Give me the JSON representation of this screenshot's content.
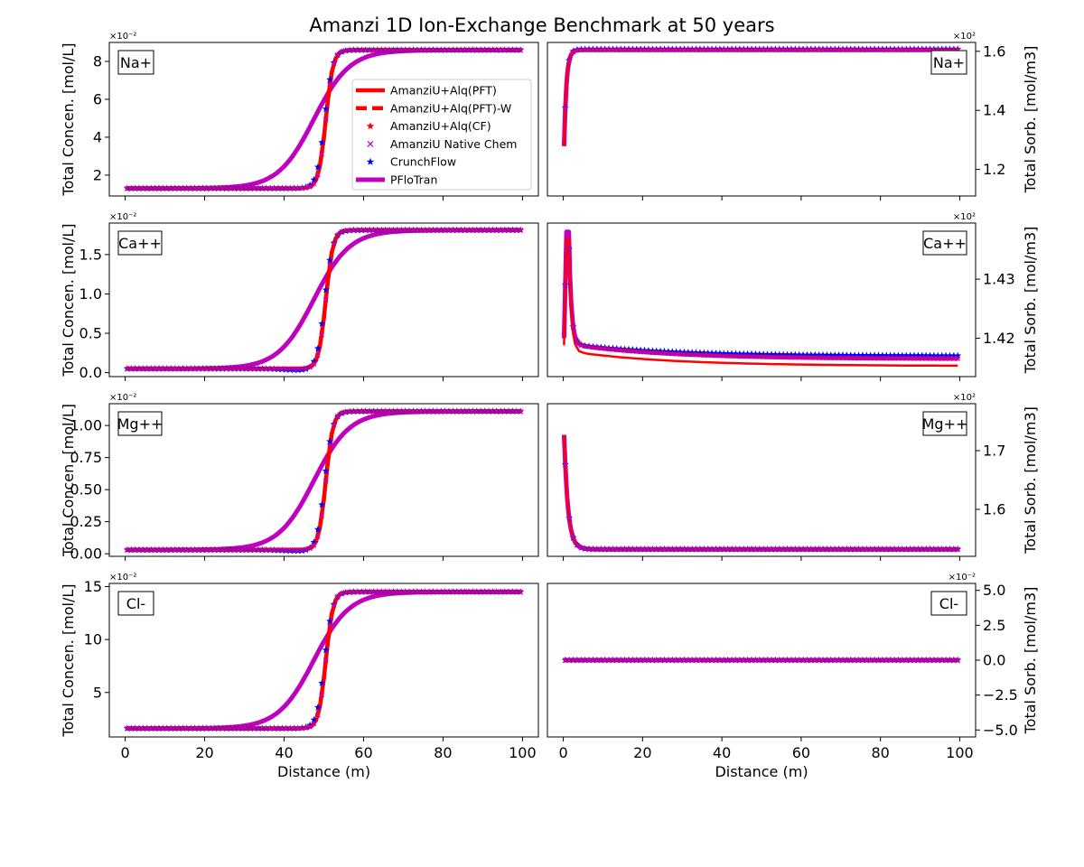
{
  "chart_data": {
    "type": "line",
    "title": "Amanzi 1D Ion-Exchange Benchmark at 50 years",
    "legend": {
      "placement": "upper-right of first panel",
      "entries": [
        {
          "label": "AmanziU+Alq(PFT)",
          "color": "#ff0000",
          "style": "solid"
        },
        {
          "label": "AmanziU+Alq(PFT)-W",
          "color": "#ff0000",
          "style": "dashed"
        },
        {
          "label": "AmanziU+Alq(CF)",
          "color": "#ff0000",
          "style": "star"
        },
        {
          "label": "AmanziU Native Chem",
          "color": "#bf00bf",
          "style": "x"
        },
        {
          "label": "CrunchFlow",
          "color": "#0000ff",
          "style": "star"
        },
        {
          "label": "PFloTran",
          "color": "#bf00bf",
          "style": "thick"
        }
      ]
    },
    "left_ylabel": "Total Concen. [mol/L]",
    "right_ylabel": "Total Sorb. [mol/m3]",
    "xlabel": "Distance (m)",
    "xlim": [
      -4,
      104
    ],
    "xticks": [
      "0",
      "20",
      "40",
      "60",
      "80",
      "100"
    ],
    "panels": [
      {
        "species": "Na+",
        "left": {
          "multiplier": "×10⁻²",
          "ylim": [
            0.9,
            9.0
          ],
          "yticks": [
            {
              "v": 2,
              "t": "2"
            },
            {
              "v": 4,
              "t": "4"
            },
            {
              "v": 6,
              "t": "6"
            },
            {
              "v": 8,
              "t": "8"
            }
          ],
          "low": 1.3,
          "high": 8.6,
          "front_sharp": {
            "center": 50.5,
            "width": 0.9
          },
          "front_cf": {
            "center": 50.2,
            "width": 1.0
          },
          "front_pflo": {
            "center": 47.5,
            "width": 4.5
          },
          "dip": 0
        },
        "right": {
          "multiplier": "×10²",
          "ylim": [
            1.11,
            1.63
          ],
          "yticks": [
            {
              "v": 1.2,
              "t": "1.2"
            },
            {
              "v": 1.4,
              "t": "1.4"
            },
            {
              "v": 1.6,
              "t": "1.6"
            }
          ],
          "start": 1.15,
          "peak": 1.6,
          "level": 1.605,
          "level_cf": 1.607,
          "rise": 0.6
        }
      },
      {
        "species": "Ca++",
        "left": {
          "multiplier": "×10⁻²",
          "ylim": [
            -0.05,
            1.9
          ],
          "yticks": [
            {
              "v": 0.0,
              "t": "0.0"
            },
            {
              "v": 0.5,
              "t": "0.5"
            },
            {
              "v": 1.0,
              "t": "1.0"
            },
            {
              "v": 1.5,
              "t": "1.5"
            }
          ],
          "low": 0.05,
          "high": 1.81,
          "front_sharp": {
            "center": 50.5,
            "width": 0.9
          },
          "front_cf": {
            "center": 50.2,
            "width": 1.0
          },
          "front_pflo": {
            "center": 47.5,
            "width": 4.5
          },
          "dip": 0.02
        },
        "right": {
          "multiplier": "×10²",
          "ylim": [
            1.4135,
            1.4395
          ],
          "yticks": [
            {
              "v": 1.42,
              "t": "1.42"
            },
            {
              "v": 1.43,
              "t": "1.43"
            }
          ],
          "start": 1.414,
          "peak": 1.438,
          "level": 1.4165,
          "level_cf": 1.417,
          "rise": 1.2,
          "tail": 1.419
        }
      },
      {
        "species": "Mg++",
        "left": {
          "multiplier": "×10⁻²",
          "ylim": [
            -0.02,
            1.17
          ],
          "yticks": [
            {
              "v": 0.0,
              "t": "0.00"
            },
            {
              "v": 0.25,
              "t": "0.25"
            },
            {
              "v": 0.5,
              "t": "0.50"
            },
            {
              "v": 0.75,
              "t": "0.75"
            },
            {
              "v": 1.0,
              "t": "1.00"
            }
          ],
          "low": 0.03,
          "high": 1.11,
          "front_sharp": {
            "center": 50.5,
            "width": 0.9
          },
          "front_cf": {
            "center": 50.2,
            "width": 1.0
          },
          "front_pflo": {
            "center": 47.5,
            "width": 4.5
          },
          "dip": 0.01
        },
        "right": {
          "multiplier": "×10²",
          "ylim": [
            1.52,
            1.78
          ],
          "yticks": [
            {
              "v": 1.6,
              "t": "1.6"
            },
            {
              "v": 1.7,
              "t": "1.7"
            }
          ],
          "start": 1.77,
          "peak": 1.77,
          "level": 1.532,
          "level_cf": 1.532,
          "rise": 1.0
        }
      },
      {
        "species": "Cl-",
        "left": {
          "multiplier": "×10⁻²",
          "ylim": [
            0.8,
            15.3
          ],
          "yticks": [
            {
              "v": 5,
              "t": "5"
            },
            {
              "v": 10,
              "t": "10"
            },
            {
              "v": 15,
              "t": "15"
            }
          ],
          "low": 1.6,
          "high": 14.5,
          "front_sharp": {
            "center": 50.5,
            "width": 0.9
          },
          "front_cf": {
            "center": 50.2,
            "width": 1.0
          },
          "front_pflo": {
            "center": 47.5,
            "width": 4.5
          },
          "dip": 0
        },
        "right": {
          "multiplier": "×10⁻²",
          "ylim": [
            -5.5,
            5.5
          ],
          "yticks": [
            {
              "v": -5,
              "t": "−5.0"
            },
            {
              "v": -2.5,
              "t": "−2.5"
            },
            {
              "v": 0,
              "t": "0.0"
            },
            {
              "v": 2.5,
              "t": "2.5"
            },
            {
              "v": 5,
              "t": "5.0"
            }
          ],
          "start": 0,
          "peak": 0,
          "level": 0,
          "level_cf": 0,
          "rise": 1
        }
      }
    ]
  }
}
